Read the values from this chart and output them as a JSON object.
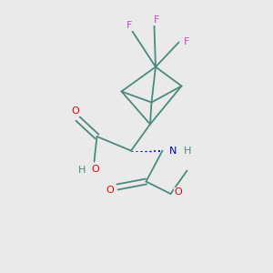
{
  "background_color": "#eaeaea",
  "bond_color": "#4a8a7e",
  "atom_colors": {
    "O": "#ee0000",
    "N": "#0000cc",
    "F": "#cc44cc",
    "H": "#4a8a7e",
    "C": "#4a8a7e"
  },
  "figsize": [
    3.0,
    3.0
  ],
  "dpi": 100,
  "xlim": [
    0,
    10
  ],
  "ylim": [
    0,
    10
  ]
}
